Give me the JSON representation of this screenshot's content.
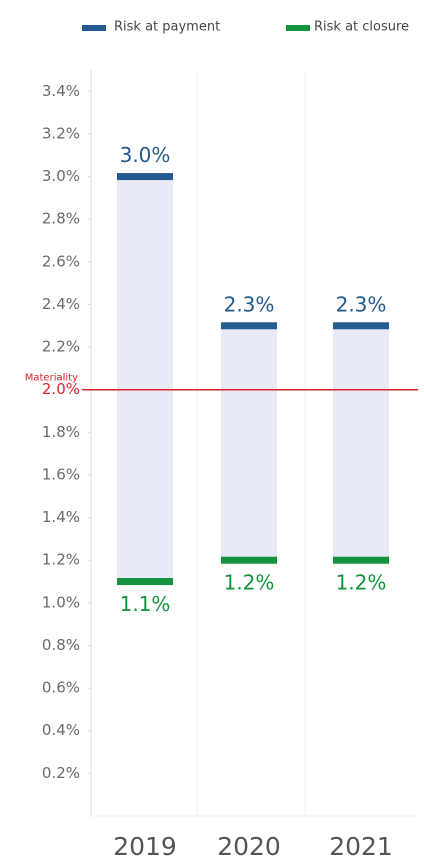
{
  "chart_data": {
    "type": "range",
    "categories": [
      "2019",
      "2020",
      "2021"
    ],
    "series": [
      {
        "name": "Risk at payment",
        "color": "#245a8e",
        "values": [
          3.0,
          2.3,
          2.3
        ],
        "value_labels": [
          "3.0%",
          "2.3%",
          "2.3%"
        ]
      },
      {
        "name": "Risk at closure",
        "color": "#14923e",
        "values": [
          1.1,
          1.2,
          1.2
        ],
        "value_labels": [
          "1.1%",
          "1.2%",
          "1.2%"
        ]
      }
    ],
    "range_color": "#e8eaf5",
    "threshold": {
      "label": "Materiality",
      "value": 2.0,
      "color": "#d9262e"
    },
    "ylim": [
      0,
      3.5
    ],
    "yticks": [
      {
        "value": 0.2,
        "label": "0.2%"
      },
      {
        "value": 0.4,
        "label": "0.4%"
      },
      {
        "value": 0.6,
        "label": "0.6%"
      },
      {
        "value": 0.8,
        "label": "0.8%"
      },
      {
        "value": 1.0,
        "label": "1.0%"
      },
      {
        "value": 1.2,
        "label": "1.2%"
      },
      {
        "value": 1.4,
        "label": "1.4%"
      },
      {
        "value": 1.6,
        "label": "1.6%"
      },
      {
        "value": 1.8,
        "label": "1.8%"
      },
      {
        "value": 2.0,
        "label": "2.0%"
      },
      {
        "value": 2.2,
        "label": "2.2%"
      },
      {
        "value": 2.4,
        "label": "2.4%"
      },
      {
        "value": 2.6,
        "label": "2.6%"
      },
      {
        "value": 2.8,
        "label": "2.8%"
      },
      {
        "value": 3.0,
        "label": "3.0%"
      },
      {
        "value": 3.2,
        "label": "3.2%"
      },
      {
        "value": 3.4,
        "label": "3.4%"
      }
    ],
    "grid": false,
    "legend": "top"
  }
}
